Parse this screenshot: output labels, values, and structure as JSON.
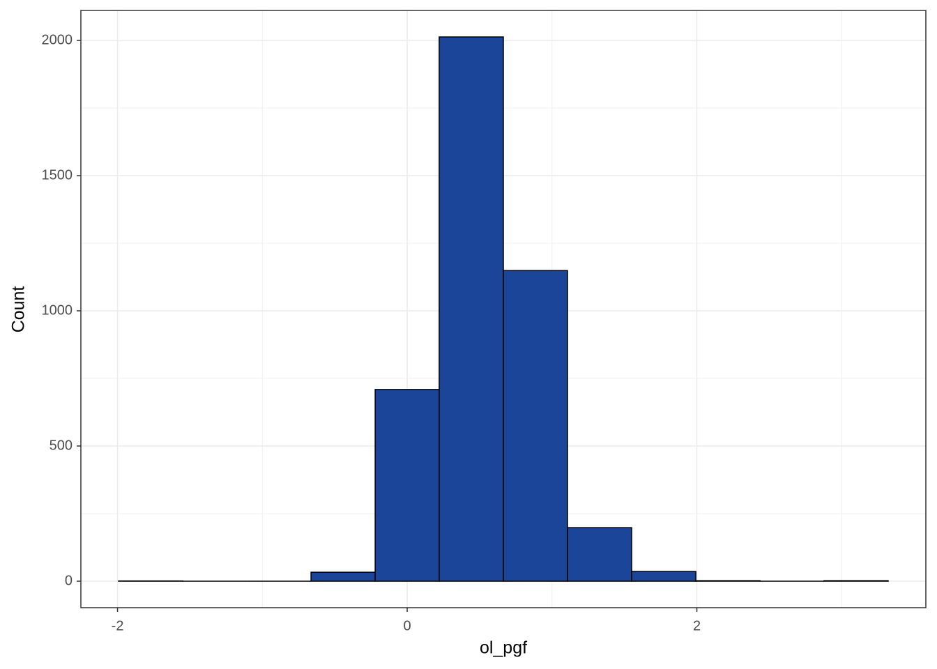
{
  "chart_data": {
    "type": "histogram",
    "bins": [
      -1.993,
      -1.55,
      -1.107,
      -0.664,
      -0.221,
      0.221,
      0.664,
      1.107,
      1.55,
      1.993,
      2.436,
      2.878,
      3.321
    ],
    "values": [
      1,
      0,
      0,
      33,
      709,
      2013,
      1149,
      198,
      36,
      2,
      0,
      2
    ],
    "color": "#1a4599",
    "x_label": "ol_pgf",
    "y_label": "Count",
    "xlim": [
      -2.253,
      3.581
    ],
    "xticks": [
      -2,
      0,
      2
    ],
    "ylim": [
      -98,
      2111
    ],
    "yticks": [
      0,
      500,
      1000,
      1500,
      2000
    ],
    "grid": true
  }
}
